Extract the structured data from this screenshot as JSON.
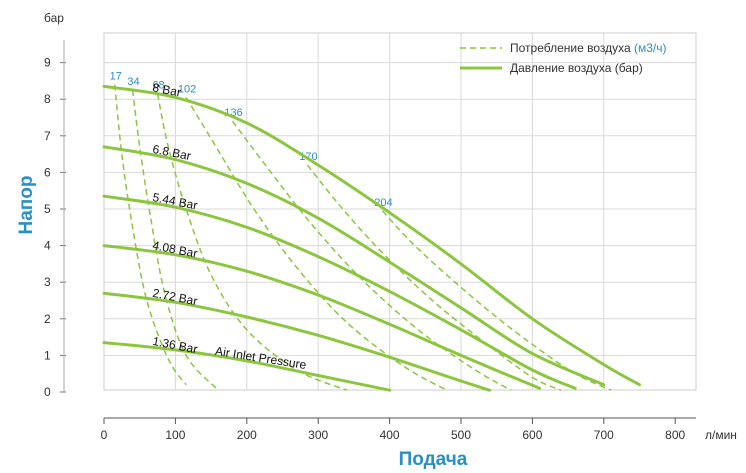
{
  "chart_data": {
    "type": "line",
    "title": "",
    "xlabel": "Подача",
    "ylabel": "Напор",
    "x_unit": "л/мин",
    "y_unit": "бар",
    "xlim": [
      0,
      800
    ],
    "ylim": [
      0,
      9.5
    ],
    "x_ticks": [
      "0",
      "100",
      "200",
      "300",
      "400",
      "500",
      "600",
      "700",
      "800"
    ],
    "y_ticks": [
      "0",
      "1",
      "2",
      "3",
      "4",
      "5",
      "6",
      "7",
      "8",
      "9"
    ],
    "grid": true,
    "legend_position": "top-right",
    "legend": {
      "air_consumption": "Потребление воздуха",
      "air_consumption_unit": "(м3/ч)",
      "air_pressure": "Давление воздуха (бар)"
    },
    "series": [
      {
        "name": "8 Bar",
        "label": "8 Bar",
        "x": [
          0,
          100,
          200,
          300,
          400,
          500,
          600,
          700,
          750
        ],
        "y": [
          8.35,
          8.05,
          7.35,
          6.2,
          4.9,
          3.5,
          2.0,
          0.75,
          0.2
        ]
      },
      {
        "name": "6.8 Bar",
        "label": "6.8 Bar",
        "x": [
          0,
          100,
          200,
          300,
          400,
          500,
          600,
          700
        ],
        "y": [
          6.7,
          6.35,
          5.7,
          4.75,
          3.55,
          2.3,
          1.05,
          0.2
        ]
      },
      {
        "name": "5.44 Bar",
        "label": "5.44 Bar",
        "x": [
          0,
          100,
          200,
          300,
          400,
          500,
          600,
          660
        ],
        "y": [
          5.35,
          5.05,
          4.5,
          3.7,
          2.75,
          1.7,
          0.6,
          0.1
        ]
      },
      {
        "name": "4.08 Bar",
        "label": "4.08 Bar",
        "x": [
          0,
          100,
          200,
          300,
          400,
          500,
          610
        ],
        "y": [
          4.0,
          3.75,
          3.3,
          2.65,
          1.85,
          1.0,
          0.1
        ]
      },
      {
        "name": "2.72 Bar",
        "label": "2.72 Bar",
        "x": [
          0,
          100,
          200,
          300,
          400,
          500,
          540
        ],
        "y": [
          2.7,
          2.45,
          2.05,
          1.55,
          0.95,
          0.3,
          0.05
        ]
      },
      {
        "name": "1.36 Bar",
        "label": "1.36 Bar",
        "x": [
          0,
          100,
          200,
          300,
          400
        ],
        "y": [
          1.35,
          1.15,
          0.85,
          0.45,
          0.05
        ]
      }
    ],
    "air_consumption_series": [
      {
        "name": "17",
        "x": [
          15,
          25,
          40,
          60,
          90,
          115
        ],
        "y": [
          8.4,
          6.5,
          4.5,
          2.5,
          0.9,
          0.2
        ]
      },
      {
        "name": "34",
        "x": [
          40,
          50,
          65,
          85,
          115,
          160
        ],
        "y": [
          8.25,
          6.7,
          4.8,
          2.7,
          1.0,
          0.05
        ]
      },
      {
        "name": "68",
        "x": [
          75,
          90,
          115,
          150,
          200,
          270,
          340
        ],
        "y": [
          8.15,
          6.7,
          5.0,
          3.2,
          1.7,
          0.6,
          0.05
        ]
      },
      {
        "name": "102",
        "x": [
          115,
          160,
          210,
          270,
          340,
          420,
          480
        ],
        "y": [
          8.05,
          6.6,
          5.0,
          3.4,
          1.9,
          0.7,
          0.05
        ]
      },
      {
        "name": "136",
        "x": [
          180,
          230,
          290,
          360,
          440,
          520,
          570
        ],
        "y": [
          7.4,
          6.1,
          4.6,
          3.1,
          1.7,
          0.6,
          0.05
        ]
      },
      {
        "name": "170",
        "x": [
          285,
          330,
          390,
          460,
          530,
          600,
          640
        ],
        "y": [
          6.2,
          5.1,
          3.8,
          2.5,
          1.4,
          0.4,
          0.05
        ]
      },
      {
        "name": "204",
        "x": [
          390,
          430,
          480,
          540,
          600,
          660,
          710
        ],
        "y": [
          4.95,
          4.1,
          3.2,
          2.2,
          1.3,
          0.5,
          0.05
        ]
      }
    ],
    "annotations": {
      "air_inlet": "Air Inlet Pressure"
    },
    "colors": {
      "line": "#8cc63f",
      "axis_title": "#2a8fc4",
      "grid": "#d9d9d9",
      "frame": "#cccccc"
    }
  }
}
